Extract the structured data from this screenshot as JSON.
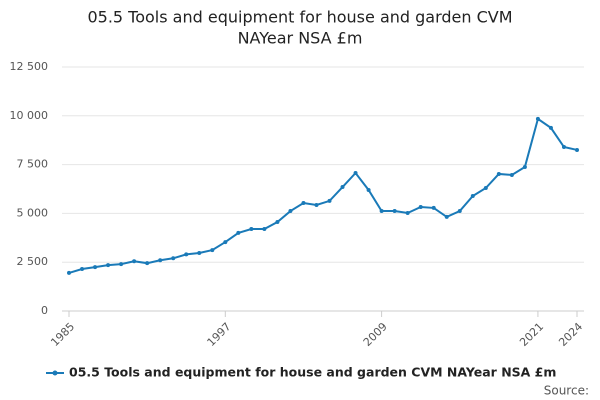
{
  "chart_data": {
    "type": "line",
    "title": [
      "05.5 Tools and equipment for house and garden CVM",
      "NAYear NSA £m"
    ],
    "x": [
      1985,
      1986,
      1987,
      1988,
      1989,
      1990,
      1991,
      1992,
      1993,
      1994,
      1995,
      1996,
      1997,
      1998,
      1999,
      2000,
      2001,
      2002,
      2003,
      2004,
      2005,
      2006,
      2007,
      2008,
      2009,
      2010,
      2011,
      2012,
      2013,
      2014,
      2015,
      2016,
      2017,
      2018,
      2019,
      2020,
      2021,
      2022,
      2023,
      2024
    ],
    "series": [
      {
        "name": "05.5 Tools and equipment for house and garden CVM NAYear NSA £m",
        "color": "#1a7ab8",
        "values": [
          1950,
          2150,
          2250,
          2350,
          2400,
          2550,
          2450,
          2600,
          2700,
          2900,
          2970,
          3120,
          3530,
          4000,
          4200,
          4200,
          4560,
          5120,
          5530,
          5430,
          5640,
          6350,
          7070,
          6200,
          5120,
          5120,
          5020,
          5330,
          5280,
          4820,
          5120,
          5890,
          6300,
          7020,
          6970,
          7380,
          9840,
          9380,
          8400,
          8250
        ]
      }
    ],
    "xlim": [
      1985,
      2024
    ],
    "xticks": [
      1985,
      1997,
      2009,
      2021,
      2024
    ],
    "ylim": [
      0,
      12500
    ],
    "yticks": [
      0,
      {
        "value": 2500,
        "label": "2 500"
      },
      {
        "value": 5000,
        "label": "5 000"
      },
      {
        "value": 7500,
        "label": "7 500"
      },
      {
        "value": 10000,
        "label": "10 000"
      },
      {
        "value": 12500,
        "label": "12 500"
      }
    ],
    "grid": true,
    "source": "Source:"
  }
}
